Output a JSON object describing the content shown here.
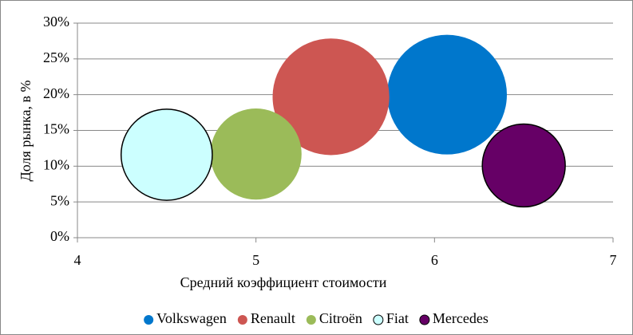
{
  "chart_data": {
    "type": "bubble",
    "x_label": "Средний коэффициент стоимости",
    "y_label": "Доля рынка, в %",
    "xlim": [
      4,
      7
    ],
    "xticks": [
      4,
      5,
      6,
      7
    ],
    "ylim": [
      0,
      30
    ],
    "yticks": [
      {
        "value": 0,
        "label": "0%"
      },
      {
        "value": 5,
        "label": "5%"
      },
      {
        "value": 10,
        "label": "10%"
      },
      {
        "value": 15,
        "label": "15%"
      },
      {
        "value": 20,
        "label": "20%"
      },
      {
        "value": 25,
        "label": "25%"
      },
      {
        "value": 30,
        "label": "30%"
      }
    ],
    "grid": true,
    "legend": "bottom",
    "series": [
      {
        "name": "Volkswagen",
        "color": "#0077cc",
        "x": [
          6.07
        ],
        "values": [
          20
        ],
        "sizes": [
          100
        ]
      },
      {
        "name": "Renault",
        "color": "#cd5652",
        "x": [
          5.42
        ],
        "values": [
          19.7
        ],
        "sizes": [
          95
        ]
      },
      {
        "name": "Citroën",
        "color": "#9bbb59",
        "x": [
          5.0
        ],
        "values": [
          11.7
        ],
        "sizes": [
          58
        ]
      },
      {
        "name": "Fiat",
        "color": "#ccffff",
        "x": [
          4.5
        ],
        "values": [
          11.6
        ],
        "sizes": [
          58
        ]
      },
      {
        "name": "Mercedes",
        "color": "#660066",
        "x": [
          6.5
        ],
        "values": [
          10.1
        ],
        "sizes": [
          48
        ]
      }
    ]
  }
}
